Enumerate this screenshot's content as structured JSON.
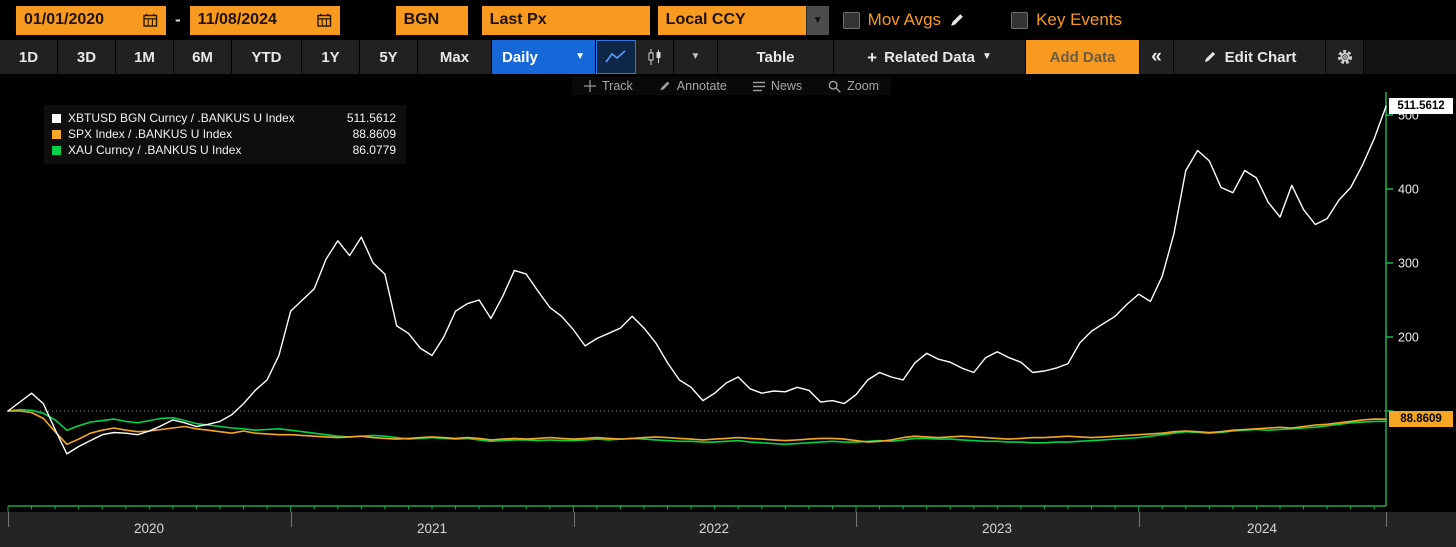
{
  "icons": {
    "dropdown_arrow": "▼",
    "collapse": "«",
    "plus": "+",
    "dash": "-"
  },
  "toolbar_top": {
    "date_from": "01/01/2020",
    "date_to": "11/08/2024",
    "security_source": "BGN",
    "price_field": "Last Px",
    "currency": "Local CCY",
    "mov_avgs_label": "Mov Avgs",
    "key_events_label": "Key Events"
  },
  "toolbar_ranges": {
    "items": [
      "1D",
      "3D",
      "1M",
      "6M",
      "YTD",
      "1Y",
      "5Y",
      "Max"
    ],
    "period": "Daily",
    "table_label": "Table",
    "related_data_label": "Related Data",
    "add_data_label": "Add Data",
    "edit_chart_label": "Edit Chart"
  },
  "chart_toolbar": {
    "items": [
      "Track",
      "Annotate",
      "News",
      "Zoom"
    ]
  },
  "legend": {
    "items": [
      {
        "label": "XBTUSD BGN Curncy / .BANKUS U Index",
        "value": "511.5612",
        "color": "#ffffff"
      },
      {
        "label": "SPX Index / .BANKUS U Index",
        "value": "88.8609",
        "color": "#f5a623"
      },
      {
        "label": "XAU Curncy / .BANKUS U Index",
        "value": "86.0779",
        "color": "#00d24b"
      }
    ]
  },
  "axis": {
    "color": "#18a94c",
    "years": [
      "2020",
      "2021",
      "2022",
      "2023",
      "2024"
    ],
    "last_badges": [
      {
        "value": "511.5612",
        "bg": "#ffffff",
        "fg": "#000000"
      },
      {
        "value": "88.8609",
        "bg": "#f5a623",
        "fg": "#000000"
      }
    ]
  },
  "chart_data": {
    "type": "line",
    "x_start": "01/01/2020",
    "x_end": "11/08/2024",
    "points_per_month": 2,
    "base_line": 100,
    "y_ticks": [
      100,
      200,
      300,
      400,
      500
    ],
    "ylim": [
      -25,
      545
    ],
    "legend_position": "top-left",
    "grid": false,
    "series": [
      {
        "name": "XBTUSD BGN Curncy / .BANKUS U Index",
        "color": "#ffffff",
        "width": 1.4,
        "last": 511.5612,
        "values": [
          100,
          112,
          124,
          110,
          75,
          42,
          52,
          60,
          68,
          71,
          70,
          68,
          73,
          80,
          88,
          84,
          79,
          82,
          86,
          95,
          110,
          128,
          142,
          175,
          235,
          250,
          265,
          305,
          330,
          310,
          335,
          300,
          285,
          215,
          205,
          185,
          175,
          200,
          235,
          245,
          250,
          225,
          255,
          290,
          285,
          262,
          240,
          228,
          210,
          188,
          198,
          205,
          212,
          228,
          212,
          192,
          165,
          142,
          132,
          114,
          124,
          138,
          146,
          130,
          124,
          127,
          126,
          132,
          128,
          112,
          114,
          110,
          122,
          142,
          152,
          146,
          142,
          165,
          178,
          170,
          166,
          158,
          152,
          172,
          180,
          172,
          166,
          152,
          154,
          158,
          164,
          192,
          208,
          218,
          228,
          244,
          258,
          248,
          282,
          340,
          425,
          452,
          438,
          402,
          395,
          425,
          415,
          382,
          362,
          405,
          372,
          352,
          360,
          385,
          402,
          432,
          468,
          511.56
        ]
      },
      {
        "name": "SPX Index / .BANKUS U Index",
        "color": "#f5a623",
        "width": 1.6,
        "last": 88.8609,
        "values": [
          100,
          100,
          98,
          90,
          72,
          55,
          62,
          70,
          74,
          77,
          74,
          72,
          73,
          75,
          77,
          79,
          76,
          74,
          72,
          70,
          73,
          70,
          69,
          68,
          68,
          67,
          66,
          65,
          64,
          65,
          66,
          64,
          63,
          62,
          63,
          64,
          65,
          64,
          63,
          64,
          63,
          61,
          62,
          63,
          62,
          63,
          64,
          63,
          62,
          63,
          64,
          63,
          62,
          63,
          64,
          65,
          64,
          63,
          62,
          61,
          62,
          63,
          64,
          63,
          62,
          61,
          60,
          61,
          62,
          63,
          63,
          62,
          60,
          58,
          59,
          61,
          64,
          66,
          65,
          64,
          65,
          66,
          65,
          64,
          63,
          62,
          63,
          64,
          64,
          65,
          66,
          65,
          64,
          65,
          66,
          67,
          68,
          69,
          70,
          72,
          73,
          72,
          71,
          72,
          74,
          75,
          76,
          77,
          78,
          77,
          79,
          81,
          82,
          84,
          86,
          88,
          89,
          88.86
        ]
      },
      {
        "name": "XAU Curncy / .BANKUS U Index",
        "color": "#00d24b",
        "width": 1.6,
        "last": 86.0779,
        "values": [
          100,
          102,
          101,
          97,
          88,
          74,
          80,
          85,
          87,
          89,
          86,
          84,
          87,
          90,
          91,
          87,
          83,
          81,
          79,
          77,
          76,
          74,
          75,
          76,
          74,
          72,
          70,
          68,
          66,
          65,
          66,
          67,
          66,
          64,
          62,
          63,
          64,
          63,
          62,
          63,
          61,
          59,
          60,
          61,
          61,
          60,
          61,
          60,
          60,
          61,
          62,
          61,
          62,
          63,
          62,
          61,
          60,
          59,
          59,
          58,
          58,
          59,
          60,
          58,
          57,
          56,
          55,
          56,
          57,
          58,
          59,
          58,
          58,
          59,
          60,
          59,
          61,
          63,
          63,
          62,
          62,
          61,
          60,
          59,
          59,
          58,
          58,
          57,
          57,
          58,
          58,
          59,
          60,
          61,
          62,
          63,
          64,
          66,
          68,
          70,
          72,
          71,
          70,
          71,
          73,
          74,
          75,
          74,
          75,
          76,
          77,
          78,
          80,
          82,
          84,
          85,
          86,
          86.08
        ]
      }
    ]
  }
}
